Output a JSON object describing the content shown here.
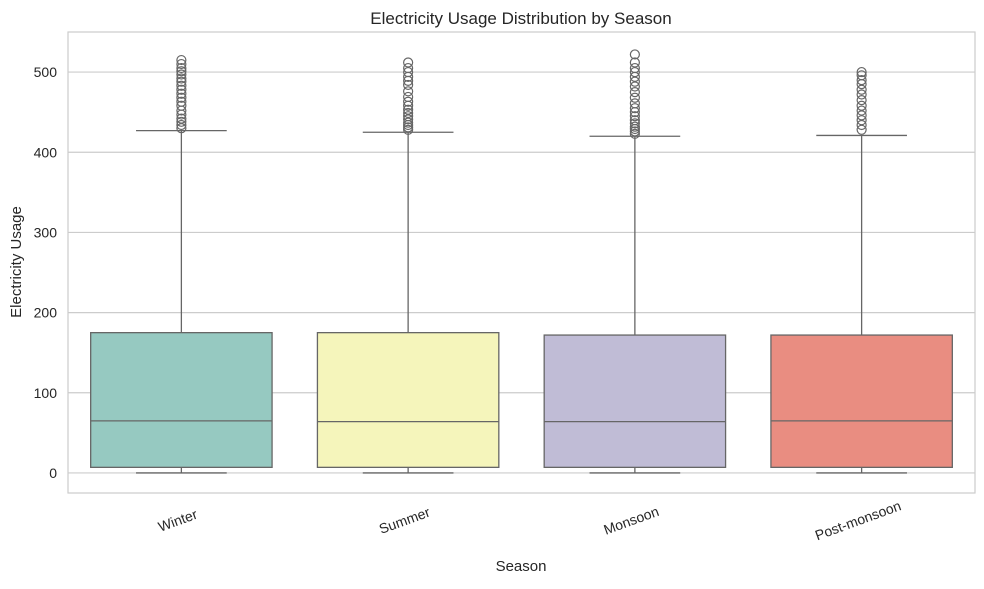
{
  "chart_data": {
    "type": "box",
    "title": "Electricity Usage Distribution by Season",
    "xlabel": "Season",
    "ylabel": "Electricity Usage",
    "ylim": [
      -25,
      550
    ],
    "yticks": [
      0,
      100,
      200,
      300,
      400,
      500
    ],
    "grid": "horizontal",
    "categories": [
      "Winter",
      "Summer",
      "Monsoon",
      "Post-monsoon"
    ],
    "boxes": [
      {
        "category": "Winter",
        "color": "#96c9c1",
        "whisker_low": 0,
        "q1": 7,
        "median": 65,
        "q3": 175,
        "whisker_high": 427,
        "outliers": [
          430,
          434,
          438,
          442,
          447,
          452,
          458,
          463,
          468,
          473,
          478,
          483,
          488,
          492,
          497,
          501,
          505,
          510,
          515
        ]
      },
      {
        "category": "Summer",
        "color": "#f5f5bb",
        "whisker_low": 0,
        "q1": 7,
        "median": 64,
        "q3": 175,
        "whisker_high": 425,
        "outliers": [
          428,
          431,
          434,
          437,
          441,
          445,
          449,
          453,
          458,
          463,
          469,
          476,
          484,
          489,
          494,
          500,
          505,
          512
        ]
      },
      {
        "category": "Monsoon",
        "color": "#c0bcd6",
        "whisker_low": 0,
        "q1": 7,
        "median": 64,
        "q3": 172,
        "whisker_high": 420,
        "outliers": [
          423,
          426,
          429,
          432,
          436,
          440,
          445,
          450,
          455,
          461,
          468,
          475,
          482,
          488,
          494,
          500,
          505,
          512,
          522
        ]
      },
      {
        "category": "Post-monsoon",
        "color": "#e98d81",
        "whisker_low": 0,
        "q1": 7,
        "median": 65,
        "q3": 172,
        "whisker_high": 421,
        "outliers": [
          428,
          434,
          440,
          446,
          452,
          458,
          465,
          472,
          478,
          485,
          490,
          496,
          500
        ]
      }
    ],
    "styles": {
      "line_color": "#666666",
      "grid_color": "#cccccc",
      "frame_color": "#cccccc"
    }
  }
}
